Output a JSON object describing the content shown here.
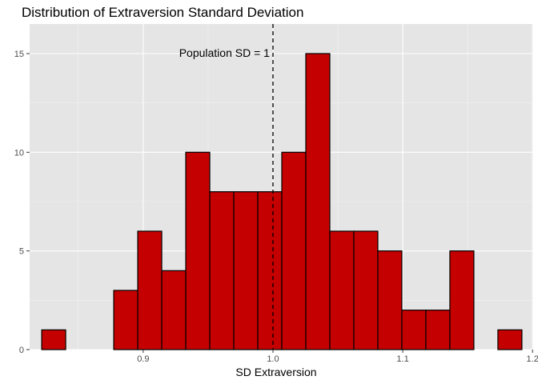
{
  "chart_data": {
    "type": "bar",
    "title": "Distribution of Extraversion Standard Deviation",
    "xlabel": "SD Extraversion",
    "ylabel": "",
    "xlim": [
      0.8125,
      1.2005
    ],
    "ylim": [
      0,
      16.5
    ],
    "x_ticks": [
      0.9,
      1.0,
      1.1,
      1.2
    ],
    "x_tick_labels": [
      "0.9",
      "1.0",
      "1.1",
      "1.2"
    ],
    "y_ticks": [
      0,
      5,
      10,
      15
    ],
    "y_tick_labels": [
      "0",
      "5",
      "10",
      "15"
    ],
    "bin_width": 0.0185,
    "bins": [
      {
        "x_start": 0.8218,
        "x_end": 0.8403,
        "count": 1
      },
      {
        "x_start": 0.8403,
        "x_end": 0.8588,
        "count": 0
      },
      {
        "x_start": 0.8588,
        "x_end": 0.8773,
        "count": 0
      },
      {
        "x_start": 0.8773,
        "x_end": 0.8958,
        "count": 3
      },
      {
        "x_start": 0.8958,
        "x_end": 0.9143,
        "count": 6
      },
      {
        "x_start": 0.9143,
        "x_end": 0.9328,
        "count": 4
      },
      {
        "x_start": 0.9328,
        "x_end": 0.9513,
        "count": 10
      },
      {
        "x_start": 0.9513,
        "x_end": 0.9698,
        "count": 8
      },
      {
        "x_start": 0.9698,
        "x_end": 0.9883,
        "count": 8
      },
      {
        "x_start": 0.9883,
        "x_end": 1.0068,
        "count": 8
      },
      {
        "x_start": 1.0068,
        "x_end": 1.0253,
        "count": 10
      },
      {
        "x_start": 1.0253,
        "x_end": 1.0438,
        "count": 15
      },
      {
        "x_start": 1.0438,
        "x_end": 1.0623,
        "count": 6
      },
      {
        "x_start": 1.0623,
        "x_end": 1.0808,
        "count": 6
      },
      {
        "x_start": 1.0808,
        "x_end": 1.0993,
        "count": 5
      },
      {
        "x_start": 1.0993,
        "x_end": 1.1178,
        "count": 2
      },
      {
        "x_start": 1.1178,
        "x_end": 1.1363,
        "count": 2
      },
      {
        "x_start": 1.1363,
        "x_end": 1.1548,
        "count": 5
      },
      {
        "x_start": 1.1548,
        "x_end": 1.1733,
        "count": 0
      },
      {
        "x_start": 1.1733,
        "x_end": 1.1918,
        "count": 1
      }
    ],
    "reference_line": {
      "x": 1.0,
      "style": "dashed",
      "label": "Population SD = 1"
    },
    "grid": true,
    "colors": {
      "bar_fill": "#c40000",
      "bar_stroke": "#000000",
      "panel_bg": "#e5e5e5",
      "grid_major": "#ffffff",
      "grid_minor": "#f2f2f2",
      "ref_line": "#000000"
    }
  }
}
